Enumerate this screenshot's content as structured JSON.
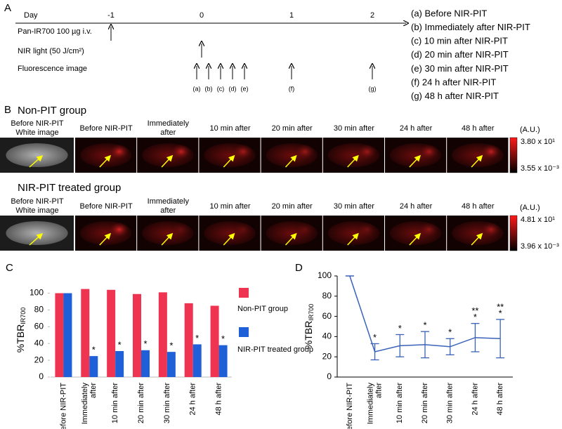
{
  "panel_a": {
    "label": "A",
    "day_label": "Day",
    "days": [
      "-1",
      "0",
      "1",
      "2"
    ],
    "rows": [
      "Pan-IR700 100 µg i.v.",
      "NIR light (50 J/cm²)",
      "Fluorescence image"
    ],
    "image_marks": [
      "(a)",
      "(b)",
      "(c)",
      "(d)",
      "(e)",
      "(f)",
      "(g)"
    ],
    "legend": [
      "(a) Before NIR-PIT",
      "(b) Immediately after NIR-PIT",
      "(c) 10 min after NIR-PIT",
      "(d) 20 min after NIR-PIT",
      "(e) 30 min after NIR-PIT",
      "(f) 24 h after NIR-PIT",
      "(g) 48 h after NIR-PIT"
    ]
  },
  "panel_b": {
    "label": "B",
    "headers": [
      [
        "Before NIR-PIT",
        "White image"
      ],
      [
        "Before NIR-PIT"
      ],
      [
        "Immediately",
        "after"
      ],
      [
        "10 min after"
      ],
      [
        "20 min after"
      ],
      [
        "30 min after"
      ],
      [
        "24 h after"
      ],
      [
        "48 h after"
      ]
    ],
    "groups": [
      {
        "name": "Non-PIT group",
        "unit": "(A.U.)",
        "scale_max": "3.80 x 10¹",
        "scale_min": "3.55 x 10⁻³"
      },
      {
        "name": "NIR-PIT treated group",
        "unit": "(A.U.)",
        "scale_max": "4.81 x 10¹",
        "scale_min": "3.96 x 10⁻³"
      }
    ]
  },
  "panel_c": {
    "label": "C"
  },
  "panel_d": {
    "label": "D"
  },
  "chart_data": [
    {
      "type": "bar",
      "y_label": "%TBR",
      "y_label_sub": "IR700",
      "categories": [
        [
          "Before NIR-PIT"
        ],
        [
          "Immediately",
          "after"
        ],
        [
          "10 min after"
        ],
        [
          "20 min after"
        ],
        [
          "30 min after"
        ],
        [
          "24 h after"
        ],
        [
          "48 h after"
        ]
      ],
      "series": [
        {
          "name": "Non-PIT group",
          "color": "#ee3450",
          "values": [
            100,
            105,
            104,
            99,
            101,
            88,
            85
          ]
        },
        {
          "name": "NIR-PIT treated group",
          "color": "#1f5fd8",
          "values": [
            100,
            25,
            31,
            32,
            30,
            39,
            38
          ],
          "annotations": [
            null,
            [
              "*"
            ],
            [
              "*"
            ],
            [
              "*"
            ],
            [
              "*"
            ],
            [
              "*"
            ],
            [
              "*"
            ]
          ]
        }
      ],
      "ylim": [
        0,
        108
      ],
      "yticks": [
        0,
        20,
        40,
        60,
        80,
        100
      ]
    },
    {
      "type": "line",
      "y_label": "%TBR",
      "y_label_sub": "IR700",
      "categories": [
        [
          "Before NIR-PIT"
        ],
        [
          "Immediately",
          "after"
        ],
        [
          "10 min after"
        ],
        [
          "20 min after"
        ],
        [
          "30 min after"
        ],
        [
          "24 h after"
        ],
        [
          "48 h after"
        ]
      ],
      "color": "#3a62b8",
      "values": [
        100,
        25,
        31,
        32,
        30,
        39,
        38
      ],
      "errors": [
        0,
        8,
        11,
        13,
        8,
        14,
        19
      ],
      "annotations": [
        null,
        [
          "*"
        ],
        [
          "*"
        ],
        [
          "*"
        ],
        [
          "*"
        ],
        [
          "**",
          "*"
        ],
        [
          "**",
          "*"
        ]
      ],
      "ylim": [
        0,
        100
      ],
      "yticks": [
        0,
        20,
        40,
        60,
        80,
        100
      ]
    }
  ]
}
